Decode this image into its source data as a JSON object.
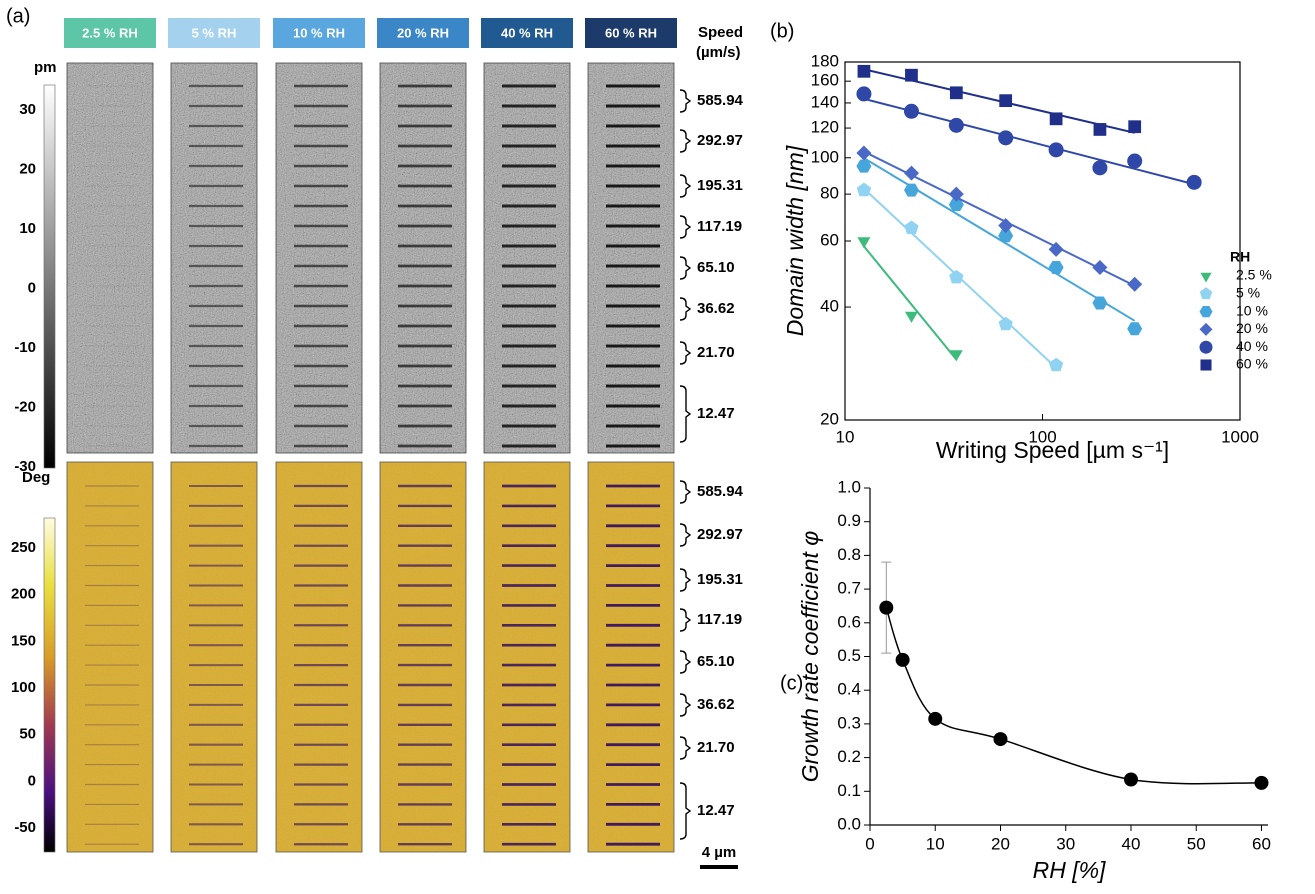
{
  "labels": {
    "a": "(a)",
    "b": "(b)",
    "c": "(c)"
  },
  "panel_a": {
    "columns": [
      {
        "label": "2.5 % RH",
        "color": "#5cc6a6"
      },
      {
        "label": "5 % RH",
        "color": "#a4d2ee"
      },
      {
        "label": "10 % RH",
        "color": "#5aa6de"
      },
      {
        "label": "20 % RH",
        "color": "#3a86c6"
      },
      {
        "label": "40 % RH",
        "color": "#215a90"
      },
      {
        "label": "60 % RH",
        "color": "#1c3a6a"
      }
    ],
    "speed_title": [
      "Speed",
      "(µm/s)"
    ],
    "amplitude_unit": "pm",
    "amplitude_ticks": [
      30,
      20,
      10,
      0,
      -10,
      -20,
      -30
    ],
    "phase_unit": "Deg",
    "phase_ticks": [
      250,
      200,
      150,
      100,
      50,
      0,
      -50
    ],
    "speeds": [
      "585.94",
      "292.97",
      "195.31",
      "117.19",
      "65.10",
      "36.62",
      "21.70",
      "12.47"
    ],
    "scale_bar": "4 µm"
  },
  "chart_data": [
    {
      "type": "scatter",
      "xlabel": "Writing Speed [µm s⁻¹]",
      "ylabel": "Domain width [nm]",
      "log_x": true,
      "log_y": true,
      "xlim": [
        10,
        1000
      ],
      "xticks": [
        10,
        100,
        1000
      ],
      "ylim": [
        20,
        180
      ],
      "yticks": [
        20,
        40,
        60,
        80,
        100,
        120,
        140,
        160,
        180
      ],
      "legend_title": "RH",
      "legend": "right",
      "fit_lines": true,
      "series": [
        {
          "name": "2.5 %",
          "color": "#3dbb7c",
          "marker": "triangle-down",
          "x": [
            12.47,
            21.7,
            36.62
          ],
          "values": [
            60,
            38,
            30
          ]
        },
        {
          "name": "5 %",
          "color": "#8fd2f2",
          "marker": "pentagon",
          "x": [
            12.47,
            21.7,
            36.62,
            65.1,
            117.19
          ],
          "values": [
            82,
            65,
            48,
            36,
            28
          ]
        },
        {
          "name": "10 %",
          "color": "#46a6dc",
          "marker": "hexagon",
          "x": [
            12.47,
            21.7,
            36.62,
            65.1,
            117.19,
            195.31,
            292.97
          ],
          "values": [
            95,
            82,
            75,
            62,
            51,
            41,
            35
          ]
        },
        {
          "name": "20 %",
          "color": "#4a68c6",
          "marker": "diamond",
          "x": [
            12.47,
            21.7,
            36.62,
            65.1,
            117.19,
            195.31,
            292.97
          ],
          "values": [
            103,
            91,
            80,
            66,
            57,
            51,
            46
          ]
        },
        {
          "name": "40 %",
          "color": "#2f48a8",
          "marker": "circle",
          "x": [
            12.47,
            21.7,
            36.62,
            65.1,
            117.19,
            195.31,
            292.97,
            585.94
          ],
          "values": [
            148,
            133,
            122,
            113,
            105,
            94,
            98,
            86
          ]
        },
        {
          "name": "60 %",
          "color": "#1f2f8a",
          "marker": "square",
          "x": [
            12.47,
            21.7,
            36.62,
            65.1,
            117.19,
            195.31,
            292.97
          ],
          "values": [
            170,
            166,
            149,
            142,
            127,
            119,
            121
          ]
        }
      ]
    },
    {
      "type": "line",
      "xlabel": "RH [%]",
      "ylabel": "Growth rate coefficient  φ",
      "smooth": true,
      "color": "#000000",
      "xlim": [
        0,
        61
      ],
      "xticks": [
        0,
        10,
        20,
        30,
        40,
        50,
        60
      ],
      "ylim": [
        0,
        1
      ],
      "yticks": [
        {
          "value": 0,
          "label": "0.0"
        },
        0.1,
        0.2,
        0.3,
        0.4,
        0.5,
        0.6,
        0.7,
        0.8,
        0.9,
        {
          "value": 1,
          "label": "1.0"
        }
      ],
      "x": [
        2.5,
        5,
        10,
        20,
        40,
        60
      ],
      "values": [
        0.645,
        0.49,
        0.315,
        0.255,
        0.135,
        0.125
      ],
      "errors": [
        0.135,
        null,
        null,
        null,
        null,
        null
      ]
    }
  ]
}
